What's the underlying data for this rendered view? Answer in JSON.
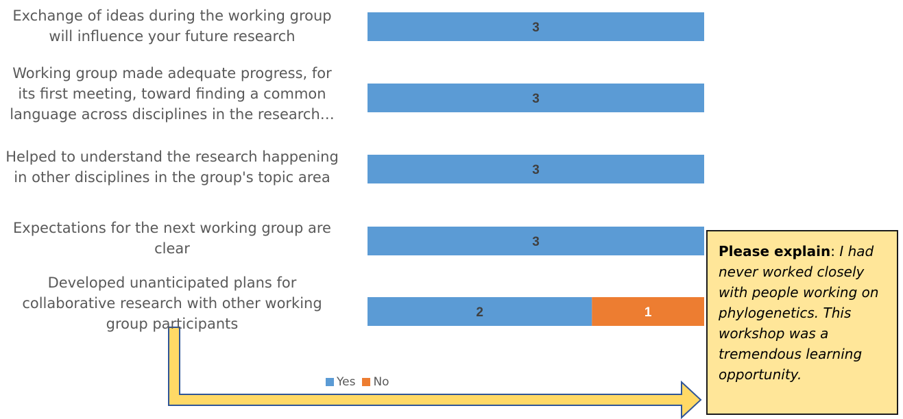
{
  "chart_data": {
    "type": "bar",
    "orientation": "horizontal",
    "stacked": true,
    "categories": [
      "Exchange of ideas during the working group will influence your future research",
      "Working group made adequate progress, for its first meeting, toward finding a common language across disciplines in the research…",
      "Helped to understand the research happening in other disciplines in the group's topic area",
      "Expectations for the next working group are clear",
      "Developed unanticipated plans for collaborative research with other working group participants"
    ],
    "series": [
      {
        "name": "Yes",
        "values": [
          3,
          3,
          3,
          3,
          2
        ]
      },
      {
        "name": "No",
        "values": [
          0,
          0,
          0,
          0,
          1
        ]
      }
    ],
    "xlim": [
      0,
      3
    ],
    "grid": false,
    "legend_position": "bottom",
    "data_labels": true
  },
  "colors": {
    "yes": "#5b9bd5",
    "no": "#ed7d31",
    "label_yes": "#404040",
    "label_no": "#ffffff",
    "arrow": "#ffd966",
    "arrow_outline": "#2f5597"
  },
  "legend": {
    "yes": "Yes",
    "no": "No"
  },
  "callout": {
    "label": "Please explain",
    "separator": ": ",
    "text": "I had never worked closely with people working on phylogenetics. This workshop was a tremendous  learning opportunity."
  }
}
